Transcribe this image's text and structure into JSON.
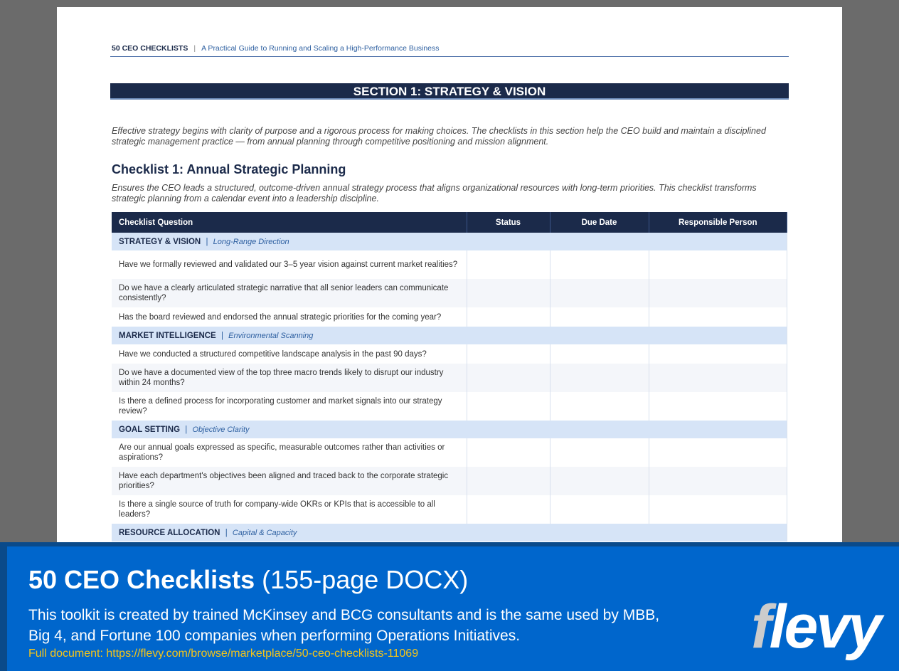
{
  "header": {
    "brand": "50 CEO CHECKLISTS",
    "separator": "|",
    "subtitle": "A Practical Guide to Running and Scaling a High-Performance Business"
  },
  "section_title": "SECTION 1: STRATEGY & VISION",
  "intro": "Effective strategy begins with clarity of purpose and a rigorous process for making choices. The checklists in this section help the CEO build and maintain a disciplined strategic management practice — from annual planning through competitive positioning and mission alignment.",
  "checklist": {
    "title": "Checklist 1: Annual Strategic Planning",
    "description": "Ensures the CEO leads a structured, outcome-driven annual strategy process that aligns organizational resources with long-term priorities. This checklist transforms strategic planning from a calendar event into a leadership discipline."
  },
  "table": {
    "columns": [
      "Checklist Question",
      "Status",
      "Due Date",
      "Responsible Person"
    ],
    "groups": [
      {
        "name": "STRATEGY & VISION",
        "sub": "Long-Range Direction",
        "items": [
          "Have we formally reviewed and validated our 3–5 year vision against current market realities?",
          "Do we have a clearly articulated strategic narrative that all senior leaders can communicate consistently?",
          "Has the board reviewed and endorsed the annual strategic priorities for the coming year?"
        ]
      },
      {
        "name": "MARKET INTELLIGENCE",
        "sub": "Environmental Scanning",
        "items": [
          "Have we conducted a structured competitive landscape analysis in the past 90 days?",
          "Do we have a documented view of the top three macro trends likely to disrupt our industry within 24 months?",
          "Is there a defined process for incorporating customer and market signals into our strategy review?"
        ]
      },
      {
        "name": "GOAL SETTING",
        "sub": "Objective Clarity",
        "items": [
          "Are our annual goals expressed as specific, measurable outcomes rather than activities or aspirations?",
          "Have each department's objectives been aligned and traced back to the corporate strategic priorities?",
          "Is there a single source of truth for company-wide OKRs or KPIs that is accessible to all leaders?"
        ]
      },
      {
        "name": "RESOURCE ALLOCATION",
        "sub": "Capital & Capacity",
        "items": []
      }
    ]
  },
  "banner": {
    "title_bold": "50 CEO Checklists",
    "title_rest": "(155-page DOCX)",
    "description": "This toolkit is created by trained McKinsey and BCG consultants and is the same used by MBB, Big 4, and Fortune 100 companies when performing Operations Initiatives.",
    "link": "Full document: https://flevy.com/browse/marketplace/50-ceo-checklists-11069",
    "logo": "flevy"
  }
}
